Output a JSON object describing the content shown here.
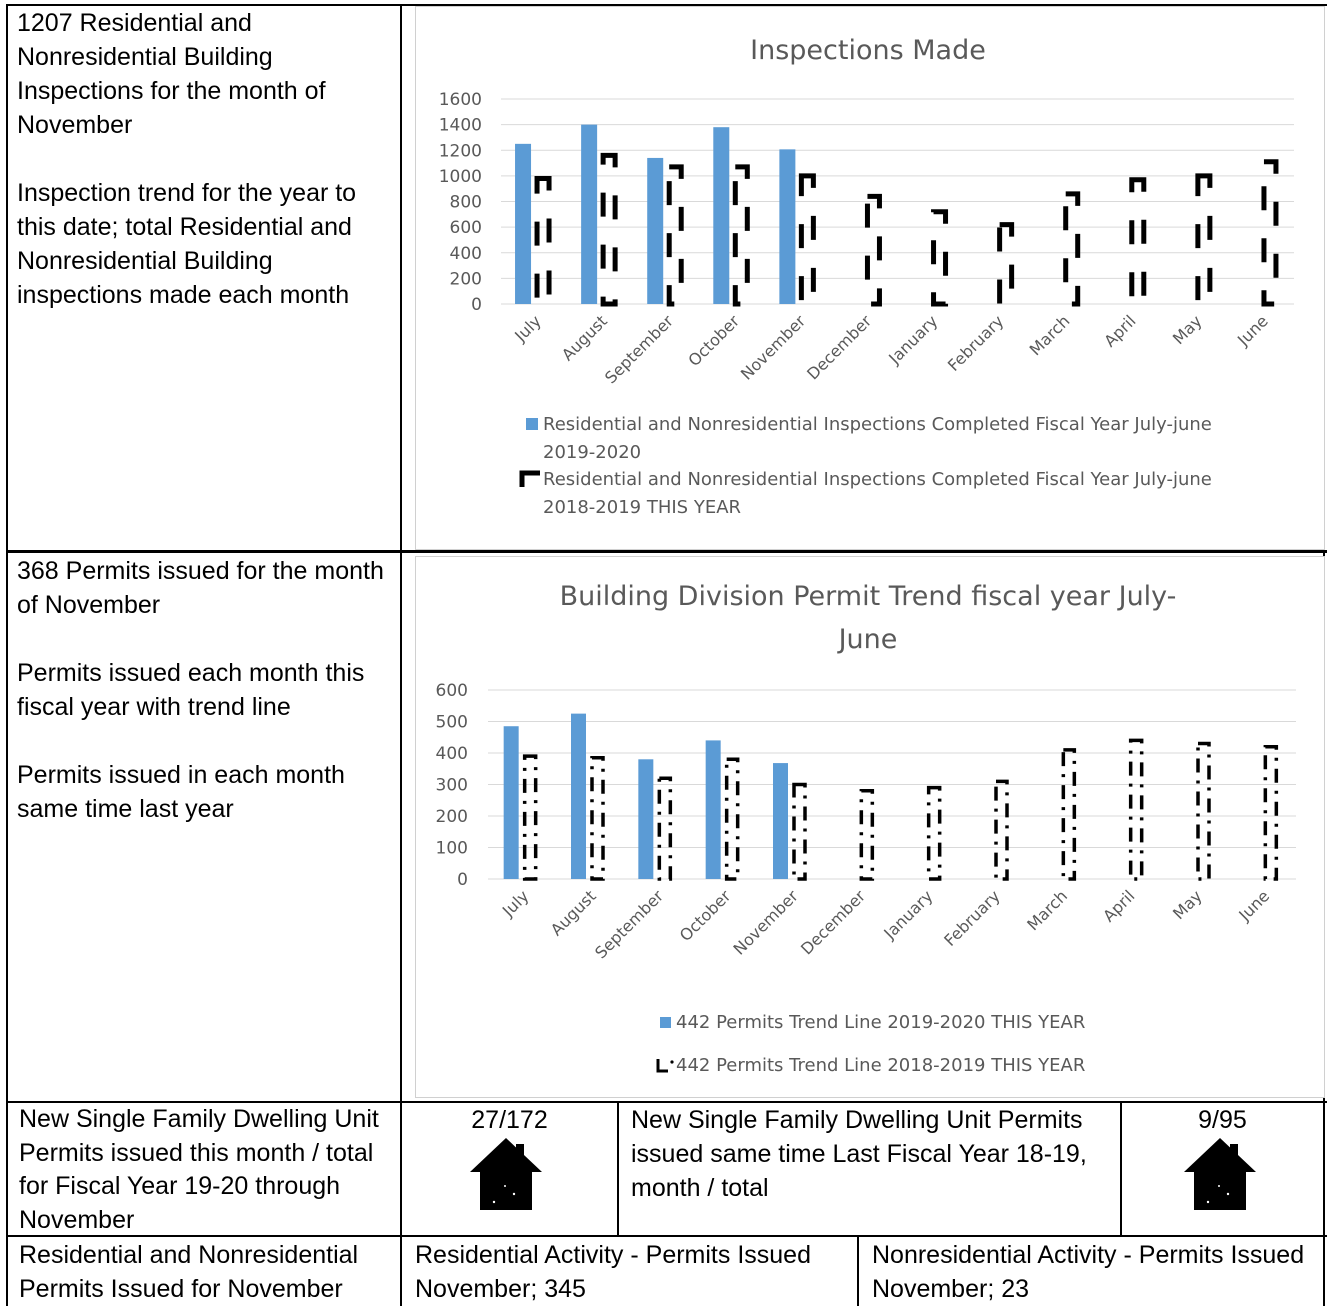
{
  "row1": {
    "text": "1207 Residential and\nNonresidential Building\nInspections for the month of\nNovember\n\nInspection trend for the year to\nthis date; total Residential and\nNonresidential Building\ninspections made each month"
  },
  "row2": {
    "text": "368 Permits issued for the month\nof November\n\nPermits issued each month this\nfiscal year with trend line\n\nPermits issued in each month\nsame time last year"
  },
  "row3": {
    "left_text": "New Single Family Dwelling Unit\nPermits issued this month / total\nfor Fiscal Year 19-20 through\nNovember",
    "count_this_year": "27/172",
    "middle_text": "New Single Family Dwelling Unit Permits\nissued same time Last Fiscal Year 18-19,\nmonth / total",
    "count_last_year": "9/95",
    "house_icon": "house-icon"
  },
  "row4": {
    "left_text": "Residential and Nonresidential\nPermits Issued for November",
    "middle_text": "Residential Activity - Permits Issued\nNovember; 345",
    "right_text": "Nonresidential Activity - Permits Issued\nNovember; 23"
  },
  "colors": {
    "blue": "#5b9bd5",
    "dashed": "#000000",
    "grid": "#d9d9d9",
    "axis_text": "#595959",
    "title_text": "#595959"
  },
  "chart_data": [
    {
      "type": "bar",
      "title": "Inspections Made",
      "categories": [
        "July",
        "August",
        "September",
        "October",
        "November",
        "December",
        "January",
        "February",
        "March",
        "April",
        "May",
        "June"
      ],
      "ylim": [
        0,
        1600
      ],
      "yticks": [
        "0",
        "200",
        "400",
        "600",
        "800",
        "1000",
        "1200",
        "1400",
        "1600"
      ],
      "grid": true,
      "legend_position": "bottom",
      "series": [
        {
          "name": "Residential and Nonresidential Inspections Completed Fiscal Year July-june 2019-2020",
          "style": "solid",
          "values": [
            1250,
            1400,
            1140,
            1380,
            1207,
            null,
            null,
            null,
            null,
            null,
            null,
            null
          ]
        },
        {
          "name": "Residential and Nonresidential Inspections Completed Fiscal Year July-june 2018-2019 THIS YEAR",
          "style": "dashed",
          "values": [
            980,
            1160,
            1070,
            1070,
            1000,
            840,
            720,
            620,
            860,
            970,
            1000,
            1110
          ]
        }
      ],
      "legend": [
        "Residential and Nonresidential Inspections Completed Fiscal Year July-june",
        "2019-2020",
        "Residential and Nonresidential Inspections Completed Fiscal Year July-june",
        "2018-2019 THIS YEAR"
      ]
    },
    {
      "type": "bar",
      "title": "Building Division Permit Trend fiscal year July-\nJune",
      "title_lines": [
        "Building Division Permit Trend fiscal year July-",
        "June"
      ],
      "categories": [
        "July",
        "August",
        "September",
        "October",
        "November",
        "December",
        "January",
        "February",
        "March",
        "April",
        "May",
        "June"
      ],
      "ylim": [
        0,
        600
      ],
      "yticks": [
        "0",
        "100",
        "200",
        "300",
        "400",
        "500",
        "600"
      ],
      "grid": true,
      "legend_position": "bottom",
      "series": [
        {
          "name": "442 Permits Trend Line 2019-2020 THIS YEAR",
          "style": "solid",
          "values": [
            485,
            525,
            380,
            440,
            368,
            null,
            null,
            null,
            null,
            null,
            null,
            null
          ]
        },
        {
          "name": "442 Permits Trend Line 2018-2019 THIS YEAR",
          "style": "dashdot",
          "values": [
            390,
            385,
            320,
            380,
            300,
            280,
            290,
            310,
            410,
            440,
            430,
            420
          ]
        }
      ]
    }
  ]
}
